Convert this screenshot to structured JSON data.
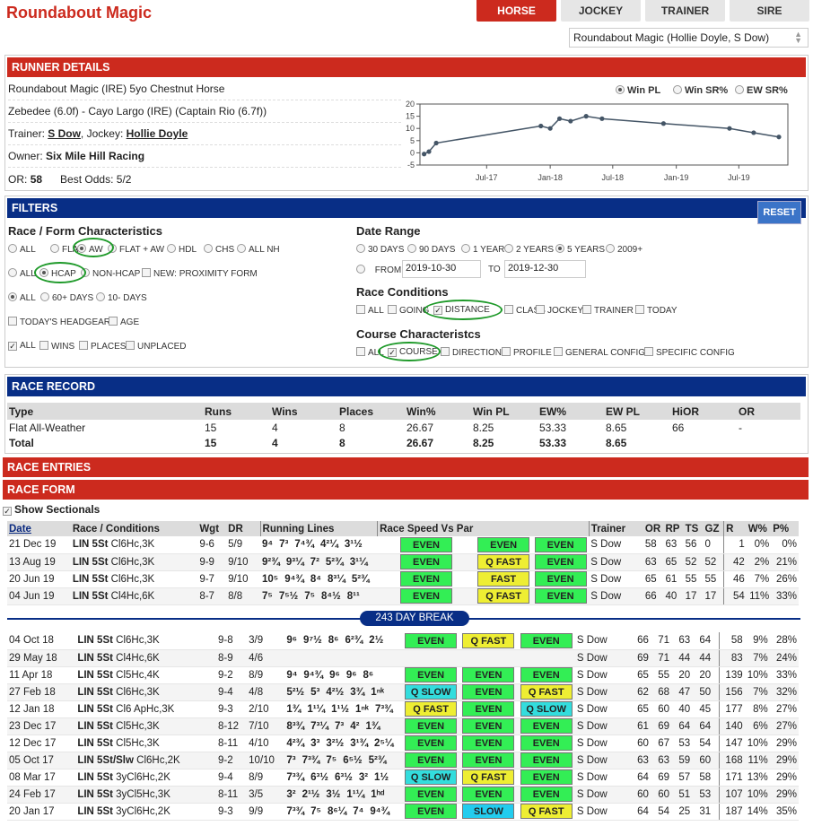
{
  "header": {
    "title": "Roundabout Magic",
    "tabs": [
      "HORSE",
      "JOCKEY",
      "TRAINER",
      "SIRE"
    ],
    "selector": "Roundabout Magic (Hollie Doyle, S Dow)"
  },
  "runner": {
    "bar": "RUNNER DETAILS",
    "line1": "Roundabout Magic (IRE) 5yo Chestnut Horse",
    "line2": "Zebedee (6.0f) - Cayo Largo (IRE) (Captain Rio (6.7f))",
    "trainer_label": "Trainer:",
    "trainer": "S Dow",
    "jockey_label": ", Jockey:",
    "jockey": "Hollie Doyle",
    "owner_label": "Owner:",
    "owner": "Six Mile Hill Racing",
    "or_label": "OR:",
    "or": "58",
    "odds_label": "Best Odds:",
    "odds": "5/2",
    "radio": [
      "Win PL",
      "Win SR%",
      "EW SR%"
    ]
  },
  "chart_data": {
    "type": "line",
    "x": [
      "2017-01-01",
      "2017-01-15",
      "2017-02-05",
      "2017-12-05",
      "2018-01-01",
      "2018-01-28",
      "2018-03-01",
      "2018-04-15",
      "2018-05-31",
      "2018-11-25",
      "2019-06-04",
      "2019-08-13",
      "2019-10-25"
    ],
    "y": [
      -0.5,
      0.5,
      4,
      11,
      10,
      14,
      13,
      15,
      14,
      12,
      10,
      8.25,
      6.5
    ],
    "ylim": [
      -5,
      20
    ],
    "yticks": [
      20,
      15,
      10,
      5,
      0,
      -5
    ],
    "xtick_labels": [
      "Jul-17",
      "Jan-18",
      "Jul-18",
      "Jan-19",
      "Jul-19"
    ],
    "color": "#445566"
  },
  "filters": {
    "bar": "FILTERS",
    "reset": "RESET",
    "race_form_title": "Race / Form Characteristics",
    "row1": [
      "ALL",
      "FLAT",
      "AW",
      "FLAT + AW",
      "HDL",
      "CHS",
      "ALL NH"
    ],
    "row2": [
      "ALL",
      "HCAP",
      "NON-HCAP"
    ],
    "proximity": "NEW: PROXIMITY FORM",
    "row3": [
      "ALL",
      "60+ DAYS",
      "10- DAYS"
    ],
    "row4": [
      "TODAY'S HEADGEAR",
      "AGE"
    ],
    "row5": [
      "ALL",
      "WINS",
      "PLACES",
      "UNPLACED"
    ],
    "date_title": "Date Range",
    "date_opts": [
      "30 DAYS",
      "90 DAYS",
      "1 YEAR",
      "2 YEARS",
      "5 YEARS",
      "2009+"
    ],
    "from_label": "FROM",
    "from": "2019-10-30",
    "to_label": "TO",
    "to": "2019-12-30",
    "cond_title": "Race Conditions",
    "cond": [
      "ALL",
      "GOING",
      "DISTANCE",
      "CLASS",
      "JOCKEY",
      "TRAINER",
      "TODAY"
    ],
    "course_title": "Course Characteristcs",
    "course": [
      "ALL",
      "COURSE",
      "DIRECTION",
      "PROFILE",
      "GENERAL CONFIG",
      "SPECIFIC CONFIG"
    ]
  },
  "record": {
    "bar": "RACE RECORD",
    "headers": [
      "Type",
      "Runs",
      "Wins",
      "Places",
      "Win%",
      "Win PL",
      "EW%",
      "EW PL",
      "HiOR",
      "OR"
    ],
    "rows": [
      [
        "Flat All-Weather",
        "15",
        "4",
        "8",
        "26.67",
        "8.25",
        "53.33",
        "8.65",
        "66",
        "-"
      ],
      [
        "Total",
        "15",
        "4",
        "8",
        "26.67",
        "8.25",
        "53.33",
        "8.65",
        "",
        ""
      ]
    ]
  },
  "entries_bar": "RACE ENTRIES",
  "form_bar": "RACE FORM",
  "show_sectionals": "Show Sectionals",
  "form": {
    "headers": [
      "Date",
      "Race / Conditions",
      "Wgt",
      "DR",
      "Running Lines",
      "Race Speed Vs Par",
      "",
      "",
      "Trainer",
      "OR",
      "RP",
      "TS",
      "GZ",
      "R",
      "W%",
      "P%"
    ],
    "break": "243 DAY BREAK",
    "rows_a": [
      {
        "date": "21 Dec 19",
        "race": "LIN 5St",
        "cond": "Cl6Hc,3K",
        "wgt": "9-6",
        "dr": "5/9",
        "rl": [
          "9⁴",
          "7³",
          "7⁴¾",
          "4²¼",
          "3¹½"
        ],
        "s": [
          "EVEN",
          "EVEN",
          "EVEN"
        ],
        "tr": "S Dow",
        "or": "58",
        "rp": "63",
        "ts": "56",
        "gz": "0",
        "r": "1",
        "w": "0%",
        "p": "0%"
      },
      {
        "date": "13 Aug 19",
        "race": "LIN 5St",
        "cond": "Cl6Hc,3K",
        "wgt": "9-9",
        "dr": "9/10",
        "rl": [
          "9²¾",
          "9³¼",
          "7²",
          "5²¾",
          "3¹¼"
        ],
        "s": [
          "EVEN",
          "Q FAST",
          "EVEN"
        ],
        "tr": "S Dow",
        "or": "63",
        "rp": "65",
        "ts": "52",
        "gz": "52",
        "r": "42",
        "w": "2%",
        "p": "21%"
      },
      {
        "date": "20 Jun 19",
        "race": "LIN 5St",
        "cond": "Cl6Hc,3K",
        "wgt": "9-7",
        "dr": "9/10",
        "rl": [
          "10⁵",
          "9⁴¾",
          "8⁴",
          "8³¼",
          "5²¾"
        ],
        "s": [
          "EVEN",
          "FAST",
          "EVEN"
        ],
        "tr": "S Dow",
        "or": "65",
        "rp": "61",
        "ts": "55",
        "gz": "55",
        "r": "46",
        "w": "7%",
        "p": "26%"
      },
      {
        "date": "04 Jun 19",
        "race": "LIN 5St",
        "cond": "Cl4Hc,6K",
        "wgt": "8-7",
        "dr": "8/8",
        "rl": [
          "7⁵",
          "7⁵½",
          "7⁵",
          "8⁴½",
          "8¹¹"
        ],
        "s": [
          "EVEN",
          "Q FAST",
          "EVEN"
        ],
        "tr": "S Dow",
        "or": "66",
        "rp": "40",
        "ts": "17",
        "gz": "17",
        "r": "54",
        "w": "11%",
        "p": "33%"
      }
    ],
    "rows_b": [
      {
        "date": "04 Oct 18",
        "race": "LIN 5St",
        "cond": "Cl6Hc,3K",
        "wgt": "9-8",
        "dr": "3/9",
        "rl": [
          "9⁶",
          "9⁷½",
          "8⁶",
          "6²¾",
          "2½"
        ],
        "s": [
          "EVEN",
          "Q FAST",
          "EVEN"
        ],
        "tr": "S Dow",
        "or": "66",
        "rp": "71",
        "ts": "63",
        "gz": "64",
        "r": "58",
        "w": "9%",
        "p": "28%"
      },
      {
        "date": "29 May 18",
        "race": "LIN 5St",
        "cond": "Cl4Hc,6K",
        "wgt": "8-9",
        "dr": "4/6",
        "rl": [],
        "s": [],
        "tr": "S Dow",
        "or": "69",
        "rp": "71",
        "ts": "44",
        "gz": "44",
        "r": "83",
        "w": "7%",
        "p": "24%"
      },
      {
        "date": "11 Apr 18",
        "race": "LIN 5St",
        "cond": "Cl5Hc,4K",
        "wgt": "9-2",
        "dr": "8/9",
        "rl": [
          "9⁴",
          "9⁴¾",
          "9⁶",
          "9⁶",
          "8⁶"
        ],
        "s": [
          "EVEN",
          "EVEN",
          "EVEN"
        ],
        "tr": "S Dow",
        "or": "65",
        "rp": "55",
        "ts": "20",
        "gz": "20",
        "r": "139",
        "w": "10%",
        "p": "33%"
      },
      {
        "date": "27 Feb 18",
        "race": "LIN 5St",
        "cond": "Cl6Hc,3K",
        "wgt": "9-4",
        "dr": "4/8",
        "rl": [
          "5²½",
          "5³",
          "4²½",
          "3¾",
          "1ⁿᵏ"
        ],
        "s": [
          "Q SLOW",
          "EVEN",
          "Q FAST"
        ],
        "tr": "S Dow",
        "or": "62",
        "rp": "68",
        "ts": "47",
        "gz": "50",
        "r": "156",
        "w": "7%",
        "p": "32%"
      },
      {
        "date": "12 Jan 18",
        "race": "LIN 5St",
        "cond": "Cl6 ApHc,3K",
        "wgt": "9-3",
        "dr": "2/10",
        "rl": [
          "1¾",
          "1¹¼",
          "1¹½",
          "1ⁿᵏ",
          "7³¾"
        ],
        "s": [
          "Q FAST",
          "EVEN",
          "Q SLOW"
        ],
        "tr": "S Dow",
        "or": "65",
        "rp": "60",
        "ts": "40",
        "gz": "45",
        "r": "177",
        "w": "8%",
        "p": "27%"
      },
      {
        "date": "23 Dec 17",
        "race": "LIN 5St",
        "cond": "Cl5Hc,3K",
        "wgt": "8-12",
        "dr": "7/10",
        "rl": [
          "8³¾",
          "7³¼",
          "7³",
          "4²",
          "1¾"
        ],
        "s": [
          "EVEN",
          "EVEN",
          "EVEN"
        ],
        "tr": "S Dow",
        "or": "61",
        "rp": "69",
        "ts": "64",
        "gz": "64",
        "r": "140",
        "w": "6%",
        "p": "27%"
      },
      {
        "date": "12 Dec 17",
        "race": "LIN 5St",
        "cond": "Cl5Hc,3K",
        "wgt": "8-11",
        "dr": "4/10",
        "rl": [
          "4²¾",
          "3³",
          "3²½",
          "3¹¾",
          "2⁵¼"
        ],
        "s": [
          "EVEN",
          "EVEN",
          "EVEN"
        ],
        "tr": "S Dow",
        "or": "60",
        "rp": "67",
        "ts": "53",
        "gz": "54",
        "r": "147",
        "w": "10%",
        "p": "29%"
      },
      {
        "date": "05 Oct 17",
        "race": "LIN 5St/Slw",
        "cond": "Cl6Hc,2K",
        "wgt": "9-2",
        "dr": "10/10",
        "rl": [
          "7³",
          "7³¾",
          "7⁵",
          "6⁵½",
          "5²¾"
        ],
        "s": [
          "EVEN",
          "EVEN",
          "EVEN"
        ],
        "tr": "S Dow",
        "or": "63",
        "rp": "63",
        "ts": "59",
        "gz": "60",
        "r": "168",
        "w": "11%",
        "p": "29%"
      },
      {
        "date": "08 Mar 17",
        "race": "LIN 5St",
        "cond": "3yCl6Hc,2K",
        "wgt": "9-4",
        "dr": "8/9",
        "rl": [
          "7³¾",
          "6³½",
          "6³½",
          "3²",
          "1½"
        ],
        "s": [
          "Q SLOW",
          "Q FAST",
          "EVEN"
        ],
        "tr": "S Dow",
        "or": "64",
        "rp": "69",
        "ts": "57",
        "gz": "58",
        "r": "171",
        "w": "13%",
        "p": "29%"
      },
      {
        "date": "24 Feb 17",
        "race": "LIN 5St",
        "cond": "3yCl5Hc,3K",
        "wgt": "8-11",
        "dr": "3/5",
        "rl": [
          "3²",
          "2¹½",
          "3½",
          "1¹¼",
          "1ʰᵈ"
        ],
        "s": [
          "EVEN",
          "EVEN",
          "EVEN"
        ],
        "tr": "S Dow",
        "or": "60",
        "rp": "60",
        "ts": "51",
        "gz": "53",
        "r": "107",
        "w": "10%",
        "p": "29%"
      },
      {
        "date": "20 Jan 17",
        "race": "LIN 5St",
        "cond": "3yCl6Hc,2K",
        "wgt": "9-3",
        "dr": "9/9",
        "rl": [
          "7³¾",
          "7⁵",
          "8⁶¼",
          "7⁴",
          "9⁴¾"
        ],
        "s": [
          "EVEN",
          "SLOW",
          "Q FAST"
        ],
        "tr": "S Dow",
        "or": "64",
        "rp": "54",
        "ts": "25",
        "gz": "31",
        "r": "187",
        "w": "14%",
        "p": "35%"
      }
    ]
  }
}
